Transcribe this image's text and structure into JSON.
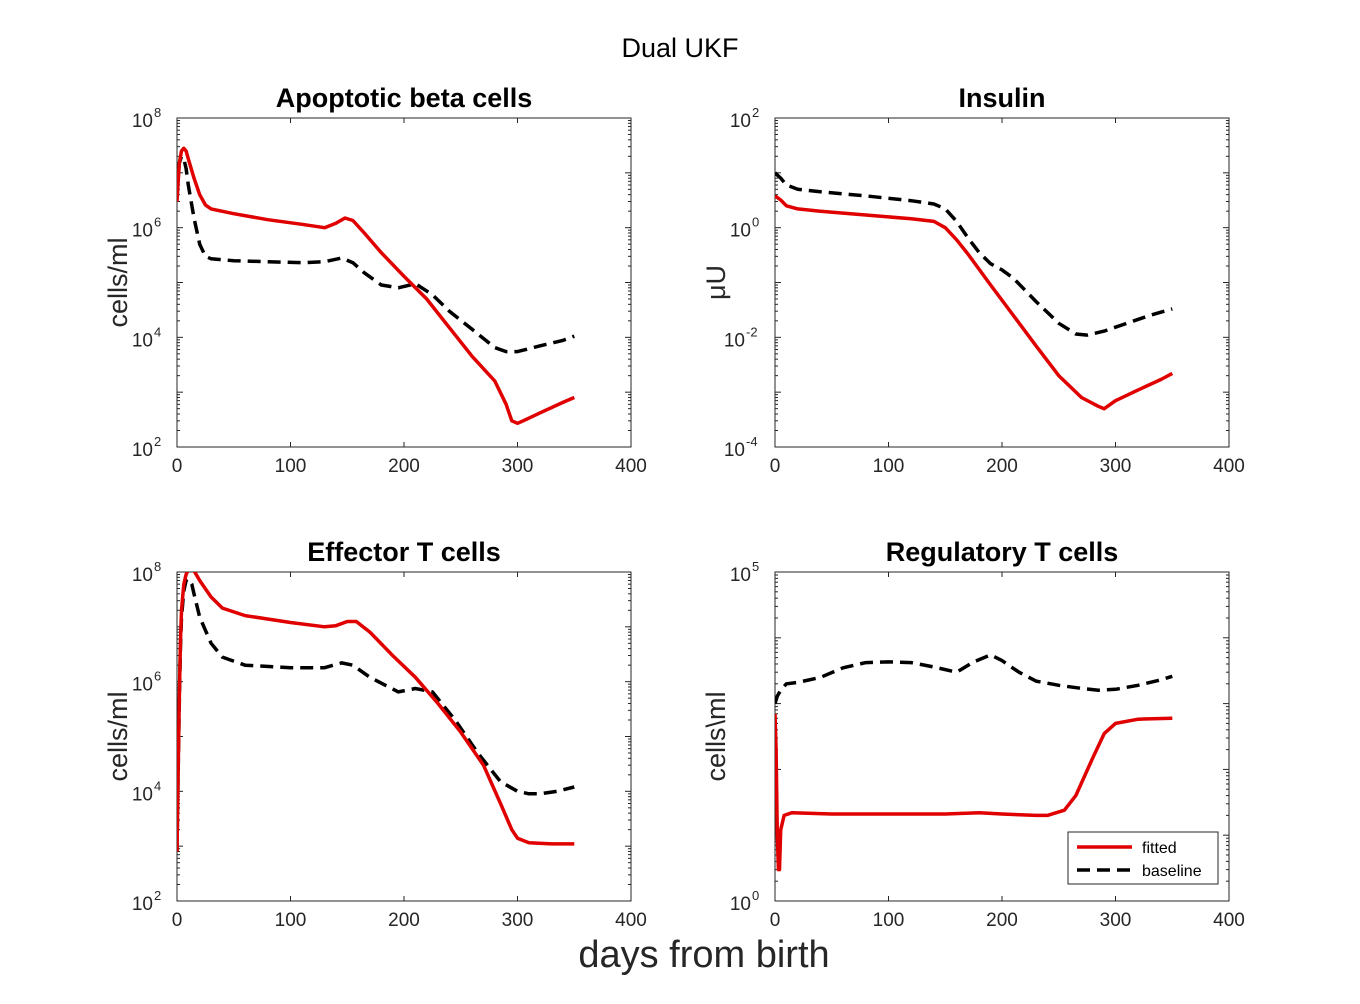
{
  "figure": {
    "title": "Dual UKF",
    "xlabel": "days from birth"
  },
  "colors": {
    "fitted": "#e00000",
    "baseline": "#000000",
    "axis": "#262626"
  },
  "chart_data": [
    {
      "type": "line",
      "title": "Apoptotic beta cells",
      "ylabel": "cells/ml",
      "yscale": "log",
      "xlim": [
        0,
        400
      ],
      "ylim": [
        100,
        100000000
      ],
      "xticks": [
        "0",
        "100",
        "200",
        "300",
        "400"
      ],
      "yticks": [
        {
          "base": "10",
          "exp": "2"
        },
        {
          "base": "10",
          "exp": "4"
        },
        {
          "base": "10",
          "exp": "6"
        },
        {
          "base": "10",
          "exp": "8"
        }
      ],
      "series": [
        {
          "name": "fitted",
          "style": "solid",
          "x": [
            0,
            2,
            4,
            6,
            8,
            10,
            15,
            20,
            25,
            30,
            50,
            80,
            110,
            130,
            140,
            148,
            155,
            165,
            180,
            200,
            220,
            240,
            260,
            280,
            290,
            295,
            300,
            305,
            320,
            340,
            350
          ],
          "y": [
            3000000,
            15000000,
            25000000,
            28000000,
            25000000,
            18000000,
            8000000,
            4000000,
            2600000,
            2200000,
            1800000,
            1400000,
            1150000,
            1000000,
            1200000,
            1500000,
            1350000,
            800000,
            350000,
            130000,
            50000,
            15000,
            4500,
            1600,
            600,
            300,
            270,
            300,
            420,
            650,
            800
          ]
        },
        {
          "name": "baseline",
          "style": "dashed",
          "x": [
            0,
            2,
            4,
            6,
            8,
            10,
            15,
            20,
            25,
            30,
            50,
            80,
            110,
            130,
            145,
            155,
            165,
            180,
            195,
            210,
            225,
            240,
            260,
            280,
            290,
            300,
            310,
            320,
            340,
            350
          ],
          "y": [
            5000000,
            15000000,
            20000000,
            18000000,
            12000000,
            6000000,
            1500000,
            500000,
            300000,
            270000,
            250000,
            240000,
            230000,
            240000,
            280000,
            230000,
            150000,
            90000,
            80000,
            95000,
            60000,
            30000,
            14000,
            6500,
            5500,
            5500,
            6200,
            7000,
            8800,
            10500
          ]
        }
      ]
    },
    {
      "type": "line",
      "title": "Insulin",
      "ylabel": "μU",
      "yscale": "log",
      "xlim": [
        0,
        400
      ],
      "ylim": [
        0.0001,
        100
      ],
      "xticks": [
        "0",
        "100",
        "200",
        "300",
        "400"
      ],
      "yticks": [
        {
          "base": "10",
          "exp": "-4"
        },
        {
          "base": "10",
          "exp": "-2"
        },
        {
          "base": "10",
          "exp": "0"
        },
        {
          "base": "10",
          "exp": "2"
        }
      ],
      "series": [
        {
          "name": "fitted",
          "style": "solid",
          "x": [
            0,
            5,
            10,
            20,
            40,
            80,
            120,
            140,
            150,
            160,
            170,
            190,
            210,
            230,
            250,
            270,
            285,
            290,
            300,
            320,
            340,
            350
          ],
          "y": [
            3.8,
            3.2,
            2.5,
            2.2,
            2.0,
            1.7,
            1.45,
            1.3,
            1.0,
            0.6,
            0.33,
            0.09,
            0.025,
            0.007,
            0.002,
            0.0008,
            0.00055,
            0.0005,
            0.0007,
            0.0011,
            0.0017,
            0.0022
          ]
        },
        {
          "name": "baseline",
          "style": "dashed",
          "x": [
            0,
            5,
            10,
            20,
            40,
            80,
            120,
            140,
            150,
            160,
            170,
            180,
            190,
            200,
            210,
            230,
            250,
            265,
            275,
            290,
            310,
            330,
            350
          ],
          "y": [
            10,
            8,
            6,
            5,
            4.5,
            3.8,
            3.1,
            2.7,
            2.2,
            1.3,
            0.65,
            0.35,
            0.22,
            0.17,
            0.12,
            0.045,
            0.018,
            0.0115,
            0.011,
            0.013,
            0.018,
            0.025,
            0.033
          ]
        }
      ]
    },
    {
      "type": "line",
      "title": "Effector T cells",
      "ylabel": "cells/ml",
      "yscale": "log",
      "xlim": [
        0,
        400
      ],
      "ylim": [
        100,
        100000000
      ],
      "xticks": [
        "0",
        "100",
        "200",
        "300",
        "400"
      ],
      "yticks": [
        {
          "base": "10",
          "exp": "2"
        },
        {
          "base": "10",
          "exp": "4"
        },
        {
          "base": "10",
          "exp": "6"
        },
        {
          "base": "10",
          "exp": "8"
        }
      ],
      "series": [
        {
          "name": "fitted",
          "style": "solid",
          "x": [
            0,
            1,
            2,
            3,
            4,
            6,
            8,
            10,
            13,
            15,
            20,
            30,
            40,
            60,
            100,
            130,
            140,
            150,
            158,
            170,
            190,
            210,
            230,
            250,
            270,
            285,
            295,
            300,
            310,
            330,
            350
          ],
          "y": [
            800,
            20000,
            500000,
            5000000,
            20000000,
            60000000,
            90000000,
            110000000,
            115000000,
            105000000,
            70000000,
            35000000,
            22000000,
            16000000,
            12000000,
            10000000,
            10500000,
            12500000,
            12500000,
            8000000,
            3000000,
            1200000,
            400000,
            120000,
            30000,
            6000,
            2000,
            1400,
            1150,
            1100,
            1100
          ]
        },
        {
          "name": "baseline",
          "style": "dashed",
          "x": [
            0,
            1,
            2,
            3,
            4,
            6,
            8,
            10,
            13,
            15,
            20,
            30,
            40,
            60,
            100,
            130,
            145,
            155,
            170,
            195,
            210,
            225,
            245,
            265,
            285,
            300,
            310,
            320,
            335,
            350
          ],
          "y": [
            800,
            20000,
            400000,
            4000000,
            15000000,
            45000000,
            70000000,
            75000000,
            60000000,
            40000000,
            15000000,
            5000000,
            2800000,
            2000000,
            1800000,
            1800000,
            2200000,
            2000000,
            1200000,
            650000,
            750000,
            650000,
            200000,
            50000,
            15000,
            10000,
            9000,
            9000,
            10000,
            12000
          ]
        }
      ]
    },
    {
      "type": "line",
      "title": "Regulatory T cells",
      "ylabel": "cells\\ml",
      "yscale": "log",
      "xlim": [
        0,
        400
      ],
      "ylim": [
        1,
        100000
      ],
      "xticks": [
        "0",
        "100",
        "200",
        "300",
        "400"
      ],
      "yticks": [
        {
          "base": "10",
          "exp": "0"
        },
        {
          "base": "10",
          "exp": "5"
        }
      ],
      "legend": {
        "location": "bottom-right",
        "entries": [
          "fitted",
          "baseline"
        ]
      },
      "series": [
        {
          "name": "fitted",
          "style": "solid",
          "x": [
            0,
            1,
            2,
            3,
            4,
            5,
            8,
            15,
            50,
            100,
            150,
            180,
            200,
            230,
            240,
            255,
            265,
            280,
            290,
            300,
            320,
            350
          ],
          "y": [
            700,
            200,
            10,
            3,
            3,
            12,
            20,
            22,
            21,
            21,
            21,
            22,
            21,
            20,
            20,
            24,
            40,
            150,
            350,
            500,
            580,
            600
          ]
        },
        {
          "name": "baseline",
          "style": "dashed",
          "x": [
            0,
            2,
            5,
            10,
            20,
            40,
            60,
            80,
            100,
            120,
            140,
            160,
            175,
            190,
            200,
            215,
            230,
            250,
            270,
            285,
            300,
            320,
            340,
            350
          ],
          "y": [
            1000,
            1300,
            1600,
            2000,
            2100,
            2500,
            3500,
            4200,
            4300,
            4200,
            3600,
            3000,
            4300,
            5500,
            4500,
            3000,
            2200,
            1900,
            1700,
            1600,
            1650,
            1900,
            2300,
            2600
          ]
        }
      ]
    }
  ]
}
